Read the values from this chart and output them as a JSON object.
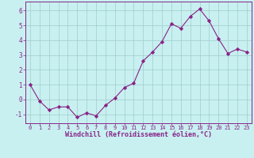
{
  "x": [
    0,
    1,
    2,
    3,
    4,
    5,
    6,
    7,
    8,
    9,
    10,
    11,
    12,
    13,
    14,
    15,
    16,
    17,
    18,
    19,
    20,
    21,
    22,
    23
  ],
  "y": [
    1.0,
    -0.1,
    -0.7,
    -0.5,
    -0.5,
    -1.2,
    -0.9,
    -1.1,
    -0.4,
    0.1,
    0.8,
    1.1,
    2.6,
    3.2,
    3.9,
    5.1,
    4.8,
    5.6,
    6.1,
    5.3,
    4.1,
    3.1,
    3.4,
    3.2
  ],
  "line_color": "#882288",
  "marker": "D",
  "markersize": 2.2,
  "linewidth": 0.8,
  "bg_color": "#C8F0F0",
  "grid_color": "#A0CCCC",
  "xlabel": "Windchill (Refroidissement éolien,°C)",
  "xlabel_color": "#882288",
  "ylabel_ticks": [
    -1,
    0,
    1,
    2,
    3,
    4,
    5,
    6
  ],
  "ylim": [
    -1.6,
    6.6
  ],
  "xlim": [
    -0.5,
    23.5
  ],
  "tick_color": "#882288",
  "axis_color": "#882288",
  "xtick_fontsize": 5.0,
  "ytick_fontsize": 5.5,
  "xlabel_fontsize": 6.0
}
